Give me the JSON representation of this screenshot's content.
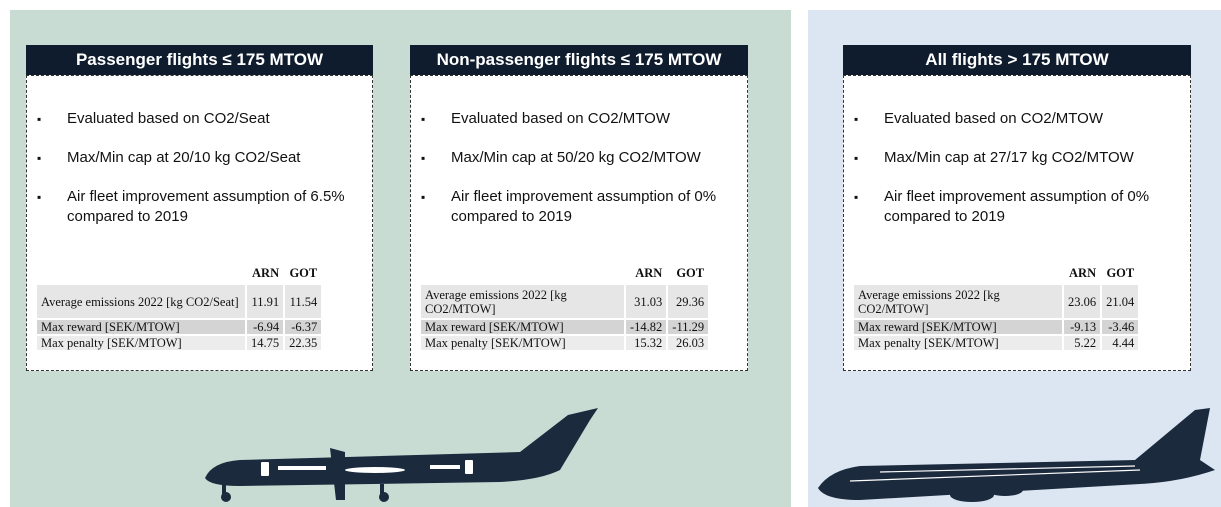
{
  "cards": [
    {
      "title": "Passenger flights ≤ 175 MTOW",
      "bullets": [
        "Evaluated based on CO2/Seat",
        "Max/Min cap at 20/10 kg CO2/Seat",
        "Air fleet improvement assumption of 6.5% compared to 2019"
      ],
      "table": {
        "columns": [
          "ARN",
          "GOT"
        ],
        "rows": [
          [
            "Average emissions 2022 [kg CO2/Seat]",
            11.91,
            11.54
          ],
          [
            "Max reward [SEK/MTOW]",
            -6.94,
            -6.37
          ],
          [
            "Max penalty [SEK/MTOW]",
            14.75,
            22.35
          ]
        ]
      }
    },
    {
      "title": "Non-passenger flights ≤ 175 MTOW",
      "bullets": [
        "Evaluated based on CO2/MTOW",
        "Max/Min cap at 50/20 kg CO2/MTOW",
        "Air fleet improvement assumption of 0% compared to 2019"
      ],
      "table": {
        "columns": [
          "ARN",
          "GOT"
        ],
        "rows": [
          [
            "Average emissions 2022 [kg CO2/MTOW]",
            31.03,
            29.36
          ],
          [
            "Max reward [SEK/MTOW]",
            -14.82,
            -11.29
          ],
          [
            "Max penalty [SEK/MTOW]",
            15.32,
            26.03
          ]
        ]
      }
    },
    {
      "title": "All flights > 175 MTOW",
      "bullets": [
        "Evaluated based on CO2/MTOW",
        "Max/Min cap at 27/17 kg CO2/MTOW",
        "Air fleet improvement assumption of 0% compared to 2019"
      ],
      "table": {
        "columns": [
          "ARN",
          "GOT"
        ],
        "rows": [
          [
            "Average emissions 2022 [kg CO2/MTOW]",
            23.06,
            21.04
          ],
          [
            "Max reward [SEK/MTOW]",
            -9.13,
            -3.46
          ],
          [
            "Max penalty [SEK/MTOW]",
            5.22,
            4.44
          ]
        ]
      }
    }
  ]
}
